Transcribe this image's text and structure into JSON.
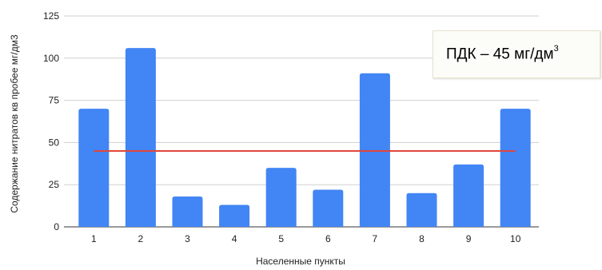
{
  "chart_data": {
    "type": "bar",
    "categories": [
      "1",
      "2",
      "3",
      "4",
      "5",
      "6",
      "7",
      "8",
      "9",
      "10"
    ],
    "values": [
      70,
      106,
      18,
      13,
      35,
      22,
      91,
      20,
      37,
      70
    ],
    "ylim": [
      0,
      125
    ],
    "yticks": [
      0,
      25,
      50,
      75,
      100,
      125
    ],
    "xlabel": "Населенные пункты",
    "ylabel": "Содержание нитратов кв пробее  мг/дм3",
    "reference_line": {
      "value": 45,
      "color": "#e0463c",
      "from_category": "1",
      "to_category": "10"
    },
    "bar_color": "#4285f4",
    "grid": true
  },
  "annotation": {
    "text": "ПДК – 45 мг/дм",
    "superscript": "3"
  }
}
